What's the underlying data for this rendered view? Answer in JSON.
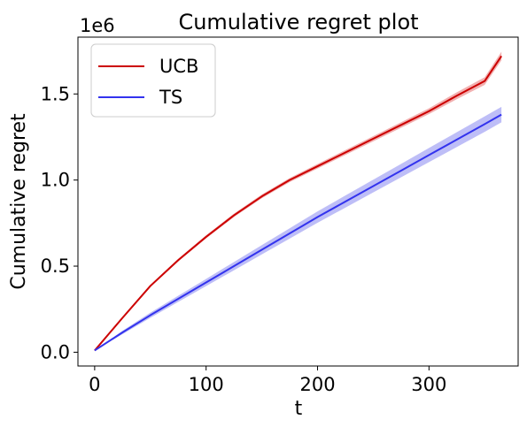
{
  "chart_data": {
    "type": "line",
    "title": "Cumulative regret plot",
    "xlabel": "t",
    "ylabel": "Cumulative regret",
    "y_offset_label": "1e6",
    "xlim": [
      -15,
      380
    ],
    "ylim": [
      -0.08,
      1.83
    ],
    "xticks": [
      0,
      100,
      200,
      300
    ],
    "xtick_labels": [
      "0",
      "100",
      "200",
      "300"
    ],
    "yticks": [
      0.0,
      0.5,
      1.0,
      1.5
    ],
    "ytick_labels": [
      "0.0",
      "0.5",
      "1.0",
      "1.5"
    ],
    "grid": false,
    "legend_position": "top-left",
    "series": [
      {
        "name": "UCB",
        "color": "#cc0000",
        "band_color": "#e87070",
        "x": [
          0,
          25,
          50,
          75,
          100,
          125,
          150,
          175,
          200,
          225,
          250,
          275,
          300,
          325,
          350,
          365
        ],
        "mean": [
          0.01,
          0.2,
          0.385,
          0.535,
          0.67,
          0.795,
          0.905,
          1.0,
          1.08,
          1.16,
          1.24,
          1.32,
          1.4,
          1.49,
          1.575,
          1.72
        ],
        "lower": [
          0.01,
          0.195,
          0.378,
          0.527,
          0.661,
          0.785,
          0.894,
          0.988,
          1.067,
          1.146,
          1.225,
          1.304,
          1.383,
          1.47,
          1.553,
          1.695
        ],
        "upper": [
          0.01,
          0.205,
          0.392,
          0.543,
          0.679,
          0.805,
          0.916,
          1.012,
          1.093,
          1.174,
          1.255,
          1.336,
          1.417,
          1.51,
          1.597,
          1.745
        ]
      },
      {
        "name": "TS",
        "color": "#3333ee",
        "band_color": "#8888f0",
        "x": [
          0,
          25,
          50,
          75,
          100,
          125,
          150,
          175,
          200,
          225,
          250,
          275,
          300,
          325,
          350,
          365
        ],
        "mean": [
          0.01,
          0.115,
          0.215,
          0.31,
          0.405,
          0.5,
          0.595,
          0.69,
          0.785,
          0.875,
          0.965,
          1.055,
          1.145,
          1.235,
          1.325,
          1.38
        ],
        "lower": [
          0.01,
          0.105,
          0.2,
          0.292,
          0.384,
          0.476,
          0.568,
          0.66,
          0.752,
          0.84,
          0.928,
          1.016,
          1.104,
          1.192,
          1.28,
          1.335
        ],
        "upper": [
          0.01,
          0.125,
          0.23,
          0.328,
          0.426,
          0.524,
          0.622,
          0.72,
          0.818,
          0.91,
          1.002,
          1.094,
          1.186,
          1.278,
          1.37,
          1.425
        ]
      }
    ]
  }
}
